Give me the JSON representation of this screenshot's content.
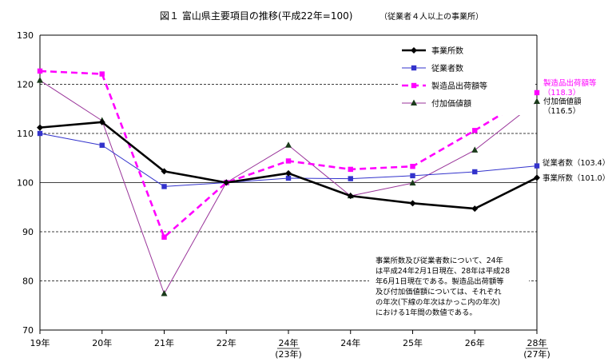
{
  "chart_data": {
    "type": "line",
    "title": "図１ 富山県主要項目の推移(平成22年=100)",
    "subtitle": "（従業者４人以上の事業所）",
    "categories": [
      "19年",
      "20年",
      "21年",
      "22年",
      "24年",
      "24年",
      "25年",
      "26年",
      "28年"
    ],
    "category_sublabels": [
      "",
      "",
      "",
      "",
      "(23年)",
      "",
      "",
      "",
      "(27年)"
    ],
    "ylim": [
      70,
      130
    ],
    "yticks": [
      70,
      80,
      90,
      100,
      110,
      120,
      130
    ],
    "grid": "horizontal dashed",
    "legend_position": "top-right",
    "series": [
      {
        "name": "事業所数",
        "color": "#000000",
        "style": "solid-bold",
        "marker": "diamond",
        "values": [
          111.2,
          112.3,
          102.3,
          100.0,
          101.9,
          97.3,
          95.8,
          94.7,
          101.0
        ],
        "end_label": "事業所数（101.0）"
      },
      {
        "name": "従業者数",
        "color": "#3333cc",
        "style": "solid-thin",
        "marker": "square",
        "values": [
          110.0,
          107.6,
          99.2,
          100.0,
          100.9,
          100.8,
          101.4,
          102.2,
          103.4
        ],
        "end_label": "従業者数（103.4）"
      },
      {
        "name": "製造品出荷額等",
        "color": "#ff00ff",
        "style": "dashed-bold",
        "marker": "square",
        "values": [
          122.7,
          122.1,
          88.9,
          100.0,
          104.4,
          102.7,
          103.3,
          110.6,
          118.3
        ],
        "end_label": [
          "製造品出荷額等",
          "（118.3）"
        ]
      },
      {
        "name": "付加価値額",
        "color": "#993399",
        "style": "solid-thin",
        "marker": "triangle",
        "values": [
          120.8,
          112.6,
          77.4,
          100.0,
          107.6,
          97.3,
          99.9,
          106.6,
          116.5
        ],
        "end_label": [
          "付加価値額",
          "（116.5）"
        ]
      }
    ]
  },
  "note": {
    "lines": [
      "事業所数及び従業者数について、24年",
      "は平成24年2月1日現在、28年は平成28",
      "年6月1日現在である。製造品出荷額等",
      "及び付加価値額については、それぞれ",
      "の年次(下線の年次はかっこ内の年次)",
      "における1年間の数値である。"
    ]
  }
}
